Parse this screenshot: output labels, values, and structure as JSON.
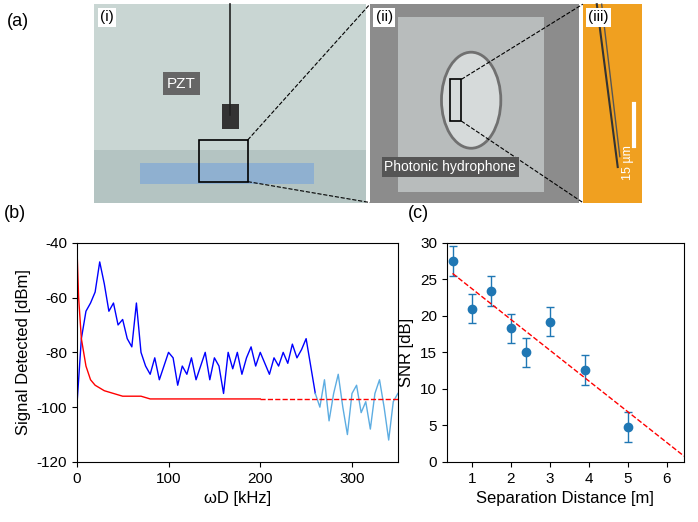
{
  "photo_panel": {
    "label": "(a)",
    "images": [
      {
        "label": "(i)",
        "texts": [
          "PZT"
        ]
      },
      {
        "label": "(ii)",
        "texts": [
          "Photonic hydrophone"
        ]
      },
      {
        "label": "(iii)",
        "texts": [
          "15 µm"
        ]
      }
    ]
  },
  "chart_data": [
    {
      "type": "line",
      "panel_label": "(b)",
      "x_label": "ωD [kHz]",
      "y_label": "Signal Detected [dBm]",
      "xlim": [
        0,
        350
      ],
      "xticks": [
        0,
        100,
        200,
        300
      ],
      "ylim": [
        -120,
        -40
      ],
      "yticks": [
        -120,
        -100,
        -80,
        -60,
        -40
      ],
      "grid": false,
      "series": [
        {
          "color": "#0000ff",
          "line_style": "solid",
          "x": [
            0,
            5,
            10,
            15,
            20,
            25,
            30,
            35,
            40,
            45,
            50,
            55,
            60,
            65,
            70,
            75,
            80,
            85,
            90,
            95,
            100,
            105,
            110,
            115,
            120,
            125,
            130,
            135,
            140,
            145,
            150,
            155,
            160,
            165,
            170,
            175,
            180,
            185,
            190,
            195,
            200,
            205,
            210,
            215,
            220,
            225,
            230,
            235,
            240,
            245,
            250,
            255,
            260
          ],
          "values": [
            -100,
            -75,
            -65,
            -62,
            -58,
            -47,
            -55,
            -65,
            -62,
            -70,
            -68,
            -75,
            -78,
            -62,
            -80,
            -85,
            -88,
            -82,
            -90,
            -85,
            -80,
            -82,
            -92,
            -85,
            -88,
            -82,
            -90,
            -85,
            -80,
            -90,
            -82,
            -85,
            -95,
            -80,
            -86,
            -80,
            -88,
            -82,
            -78,
            -85,
            -80,
            -84,
            -88,
            -82,
            -85,
            -80,
            -84,
            -77,
            -82,
            -79,
            -75,
            -85,
            -95
          ]
        },
        {
          "color": "#5dade2",
          "line_style": "solid",
          "x": [
            260,
            265,
            270,
            275,
            280,
            285,
            290,
            295,
            300,
            305,
            310,
            315,
            320,
            325,
            330,
            335,
            340,
            345,
            350
          ],
          "values": [
            -95,
            -100,
            -90,
            -105,
            -95,
            -88,
            -100,
            -110,
            -95,
            -92,
            -102,
            -98,
            -108,
            -95,
            -90,
            -100,
            -112,
            -98,
            -95
          ]
        },
        {
          "color": "#ff0000",
          "line_style": "solid",
          "x": [
            0,
            2,
            5,
            10,
            15,
            20,
            30,
            40,
            50,
            60,
            70,
            80,
            100,
            120,
            150,
            200
          ],
          "values": [
            -40,
            -60,
            -75,
            -85,
            -90,
            -92,
            -94,
            -95,
            -96,
            -96,
            -96,
            -97,
            -97,
            -97,
            -97,
            -97
          ]
        },
        {
          "color": "#ff0000",
          "line_style": "dashed",
          "x": [
            200,
            350
          ],
          "values": [
            -97,
            -97
          ]
        }
      ]
    },
    {
      "type": "scatter",
      "panel_label": "(c)",
      "x_label": "Separation Distance [m]",
      "y_label": "SNR [dB]",
      "xlim": [
        0.35,
        6.45
      ],
      "xticks": [
        1,
        2,
        3,
        4,
        5,
        6
      ],
      "ylim": [
        0,
        30
      ],
      "yticks": [
        0,
        5,
        10,
        15,
        20,
        25,
        30
      ],
      "grid": false,
      "series": [
        {
          "type": "scatter",
          "color": "#1f77b4",
          "marker": "circle",
          "x": [
            0.5,
            1,
            1.5,
            2,
            2.4,
            3,
            3.9,
            5
          ],
          "values": [
            27.5,
            21,
            23.4,
            18.3,
            15,
            19.2,
            12.6,
            4.8
          ],
          "errors": [
            2,
            2,
            2,
            2,
            2,
            2,
            2,
            2
          ]
        },
        {
          "type": "line",
          "color": "#ff0000",
          "line_style": "dashed",
          "x": [
            0.5,
            6.45
          ],
          "values": [
            25.8,
            0.8
          ]
        }
      ]
    }
  ]
}
